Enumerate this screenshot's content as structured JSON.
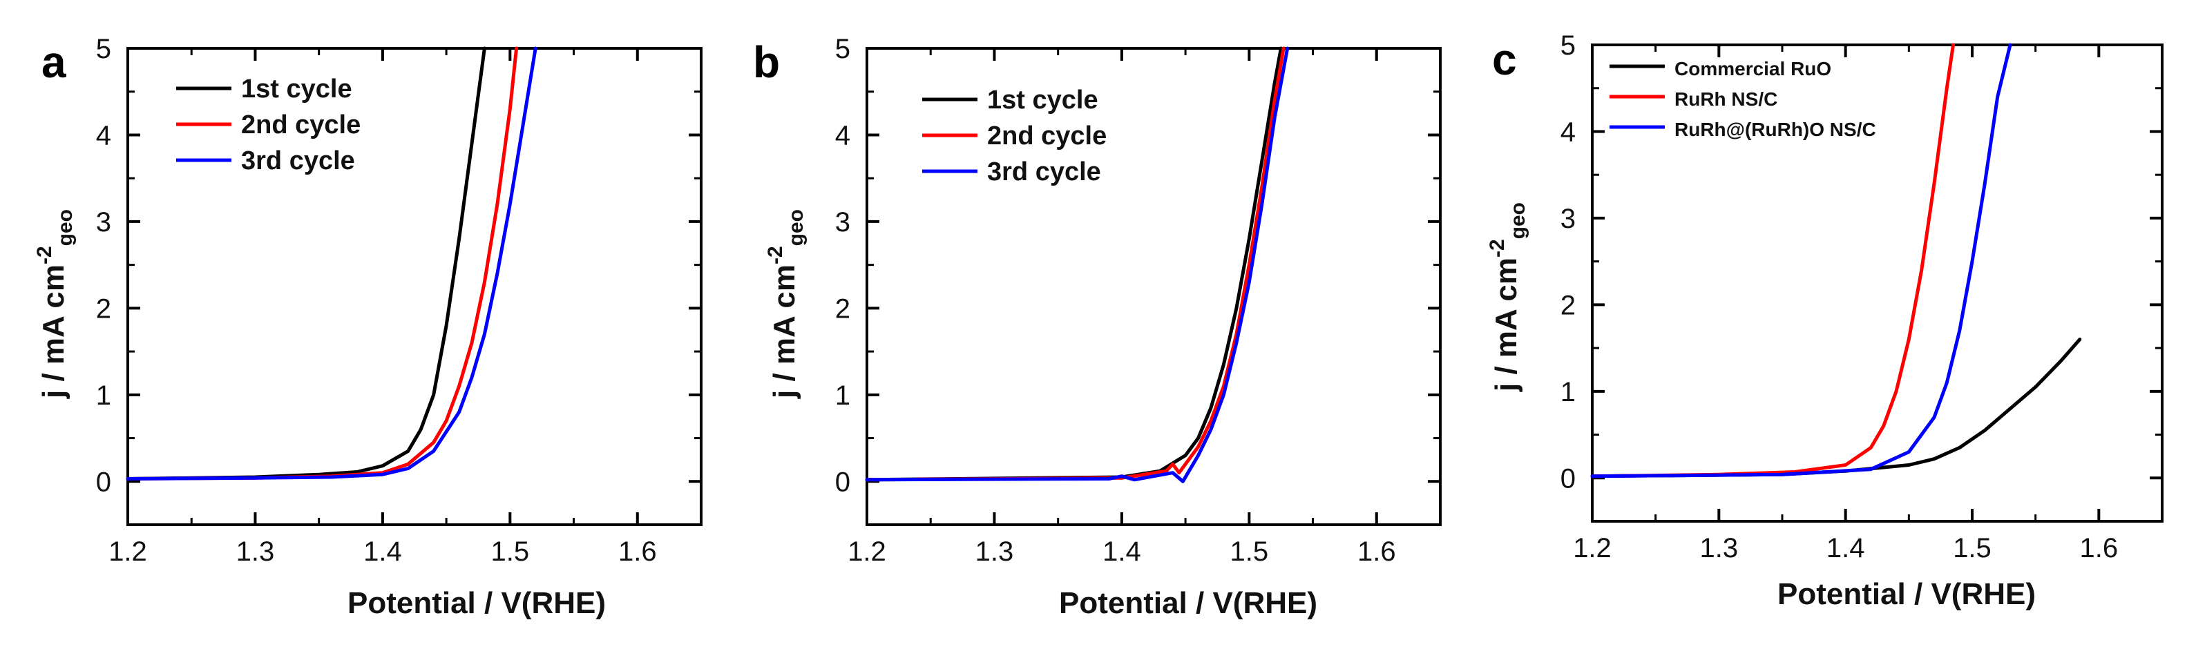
{
  "chart_data": [
    {
      "type": "line",
      "panel": "a",
      "xlabel": "Potential / V(RHE)",
      "ylabel_main": "j / mA cm",
      "ylabel_sup": "-2",
      "ylabel_sub": "geo",
      "xlim": [
        1.2,
        1.65
      ],
      "ylim": [
        -0.5,
        5
      ],
      "xticks": [
        1.2,
        1.3,
        1.4,
        1.5,
        1.6
      ],
      "xtick_labels": [
        "1.2",
        "1.3",
        "1.4",
        "1.5",
        "1.6"
      ],
      "yticks": [
        0,
        1,
        2,
        3,
        4,
        5
      ],
      "ytick_labels": [
        "0",
        "1",
        "2",
        "3",
        "4",
        "5"
      ],
      "legend_position": "top-left",
      "series": [
        {
          "name": "1st cycle",
          "color": "#000000",
          "x": [
            1.2,
            1.3,
            1.35,
            1.38,
            1.4,
            1.42,
            1.43,
            1.44,
            1.45,
            1.46,
            1.47,
            1.48
          ],
          "y": [
            0.03,
            0.05,
            0.08,
            0.11,
            0.18,
            0.35,
            0.6,
            1.0,
            1.8,
            2.8,
            3.9,
            5.0
          ]
        },
        {
          "name": "2nd cycle",
          "color": "#ff0000",
          "x": [
            1.2,
            1.3,
            1.36,
            1.4,
            1.42,
            1.44,
            1.45,
            1.46,
            1.47,
            1.48,
            1.49,
            1.5,
            1.505
          ],
          "y": [
            0.03,
            0.04,
            0.06,
            0.1,
            0.2,
            0.45,
            0.7,
            1.1,
            1.6,
            2.3,
            3.2,
            4.3,
            5.0
          ]
        },
        {
          "name": "3rd cycle",
          "color": "#0000ff",
          "x": [
            1.2,
            1.3,
            1.36,
            1.4,
            1.42,
            1.44,
            1.46,
            1.47,
            1.48,
            1.49,
            1.5,
            1.51,
            1.52
          ],
          "y": [
            0.03,
            0.04,
            0.05,
            0.08,
            0.15,
            0.35,
            0.8,
            1.2,
            1.7,
            2.4,
            3.2,
            4.1,
            5.0
          ]
        }
      ]
    },
    {
      "type": "line",
      "panel": "b",
      "xlabel": "Potential / V(RHE)",
      "ylabel_main": "j / mA cm",
      "ylabel_sup": "-2",
      "ylabel_sub": "geo",
      "xlim": [
        1.2,
        1.65
      ],
      "ylim": [
        -0.5,
        5
      ],
      "xticks": [
        1.2,
        1.3,
        1.4,
        1.5,
        1.6
      ],
      "xtick_labels": [
        "1.2",
        "1.3",
        "1.4",
        "1.5",
        "1.6"
      ],
      "yticks": [
        0,
        1,
        2,
        3,
        4,
        5
      ],
      "ytick_labels": [
        "0",
        "1",
        "2",
        "3",
        "4",
        "5"
      ],
      "legend_position": "top-left",
      "series": [
        {
          "name": "1st cycle",
          "color": "#000000",
          "x": [
            1.2,
            1.4,
            1.43,
            1.45,
            1.46,
            1.47,
            1.48,
            1.49,
            1.5,
            1.51,
            1.52,
            1.525
          ],
          "y": [
            0.02,
            0.05,
            0.12,
            0.3,
            0.5,
            0.85,
            1.35,
            2.0,
            2.8,
            3.7,
            4.6,
            5.0
          ]
        },
        {
          "name": "2nd cycle",
          "color": "#ff0000",
          "x": [
            1.2,
            1.4,
            1.435,
            1.44,
            1.445,
            1.45,
            1.46,
            1.47,
            1.48,
            1.49,
            1.5,
            1.51,
            1.52,
            1.527
          ],
          "y": [
            0.02,
            0.04,
            0.12,
            0.2,
            0.1,
            0.2,
            0.4,
            0.7,
            1.1,
            1.7,
            2.5,
            3.4,
            4.4,
            5.0
          ]
        },
        {
          "name": "3rd cycle",
          "color": "#0000ff",
          "x": [
            1.2,
            1.39,
            1.4,
            1.41,
            1.44,
            1.448,
            1.452,
            1.46,
            1.47,
            1.48,
            1.49,
            1.5,
            1.51,
            1.52,
            1.53
          ],
          "y": [
            0.02,
            0.03,
            0.06,
            0.02,
            0.1,
            0.0,
            0.1,
            0.3,
            0.6,
            1.0,
            1.6,
            2.3,
            3.2,
            4.2,
            5.0
          ]
        }
      ]
    },
    {
      "type": "line",
      "panel": "c",
      "xlabel": "Potential / V(RHE)",
      "ylabel_main": "j / mA cm",
      "ylabel_sup": "-2",
      "ylabel_sub": "geo",
      "xlim": [
        1.2,
        1.65
      ],
      "ylim": [
        -0.5,
        5
      ],
      "xticks": [
        1.2,
        1.3,
        1.4,
        1.5,
        1.6
      ],
      "xtick_labels": [
        "1.2",
        "1.3",
        "1.4",
        "1.5",
        "1.6"
      ],
      "yticks": [
        0,
        1,
        2,
        3,
        4,
        5
      ],
      "ytick_labels": [
        "0",
        "1",
        "2",
        "3",
        "4",
        "5"
      ],
      "legend_position": "top-left",
      "series": [
        {
          "name": "Commercial RuO",
          "color": "#000000",
          "x": [
            1.2,
            1.35,
            1.4,
            1.45,
            1.47,
            1.49,
            1.51,
            1.53,
            1.55,
            1.57,
            1.585
          ],
          "y": [
            0.02,
            0.04,
            0.08,
            0.15,
            0.22,
            0.35,
            0.55,
            0.8,
            1.05,
            1.35,
            1.6
          ]
        },
        {
          "name": "RuRh NS/C",
          "color": "#ff0000",
          "x": [
            1.2,
            1.3,
            1.36,
            1.4,
            1.42,
            1.43,
            1.44,
            1.45,
            1.46,
            1.47,
            1.48,
            1.485
          ],
          "y": [
            0.02,
            0.04,
            0.07,
            0.15,
            0.35,
            0.6,
            1.0,
            1.6,
            2.4,
            3.4,
            4.5,
            5.0
          ]
        },
        {
          "name": "RuRh@(RuRh)O NS/C",
          "color": "#0000ff",
          "x": [
            1.2,
            1.35,
            1.42,
            1.45,
            1.47,
            1.48,
            1.49,
            1.5,
            1.51,
            1.52,
            1.53
          ],
          "y": [
            0.02,
            0.04,
            0.1,
            0.3,
            0.7,
            1.1,
            1.7,
            2.5,
            3.4,
            4.4,
            5.0
          ]
        }
      ]
    }
  ]
}
